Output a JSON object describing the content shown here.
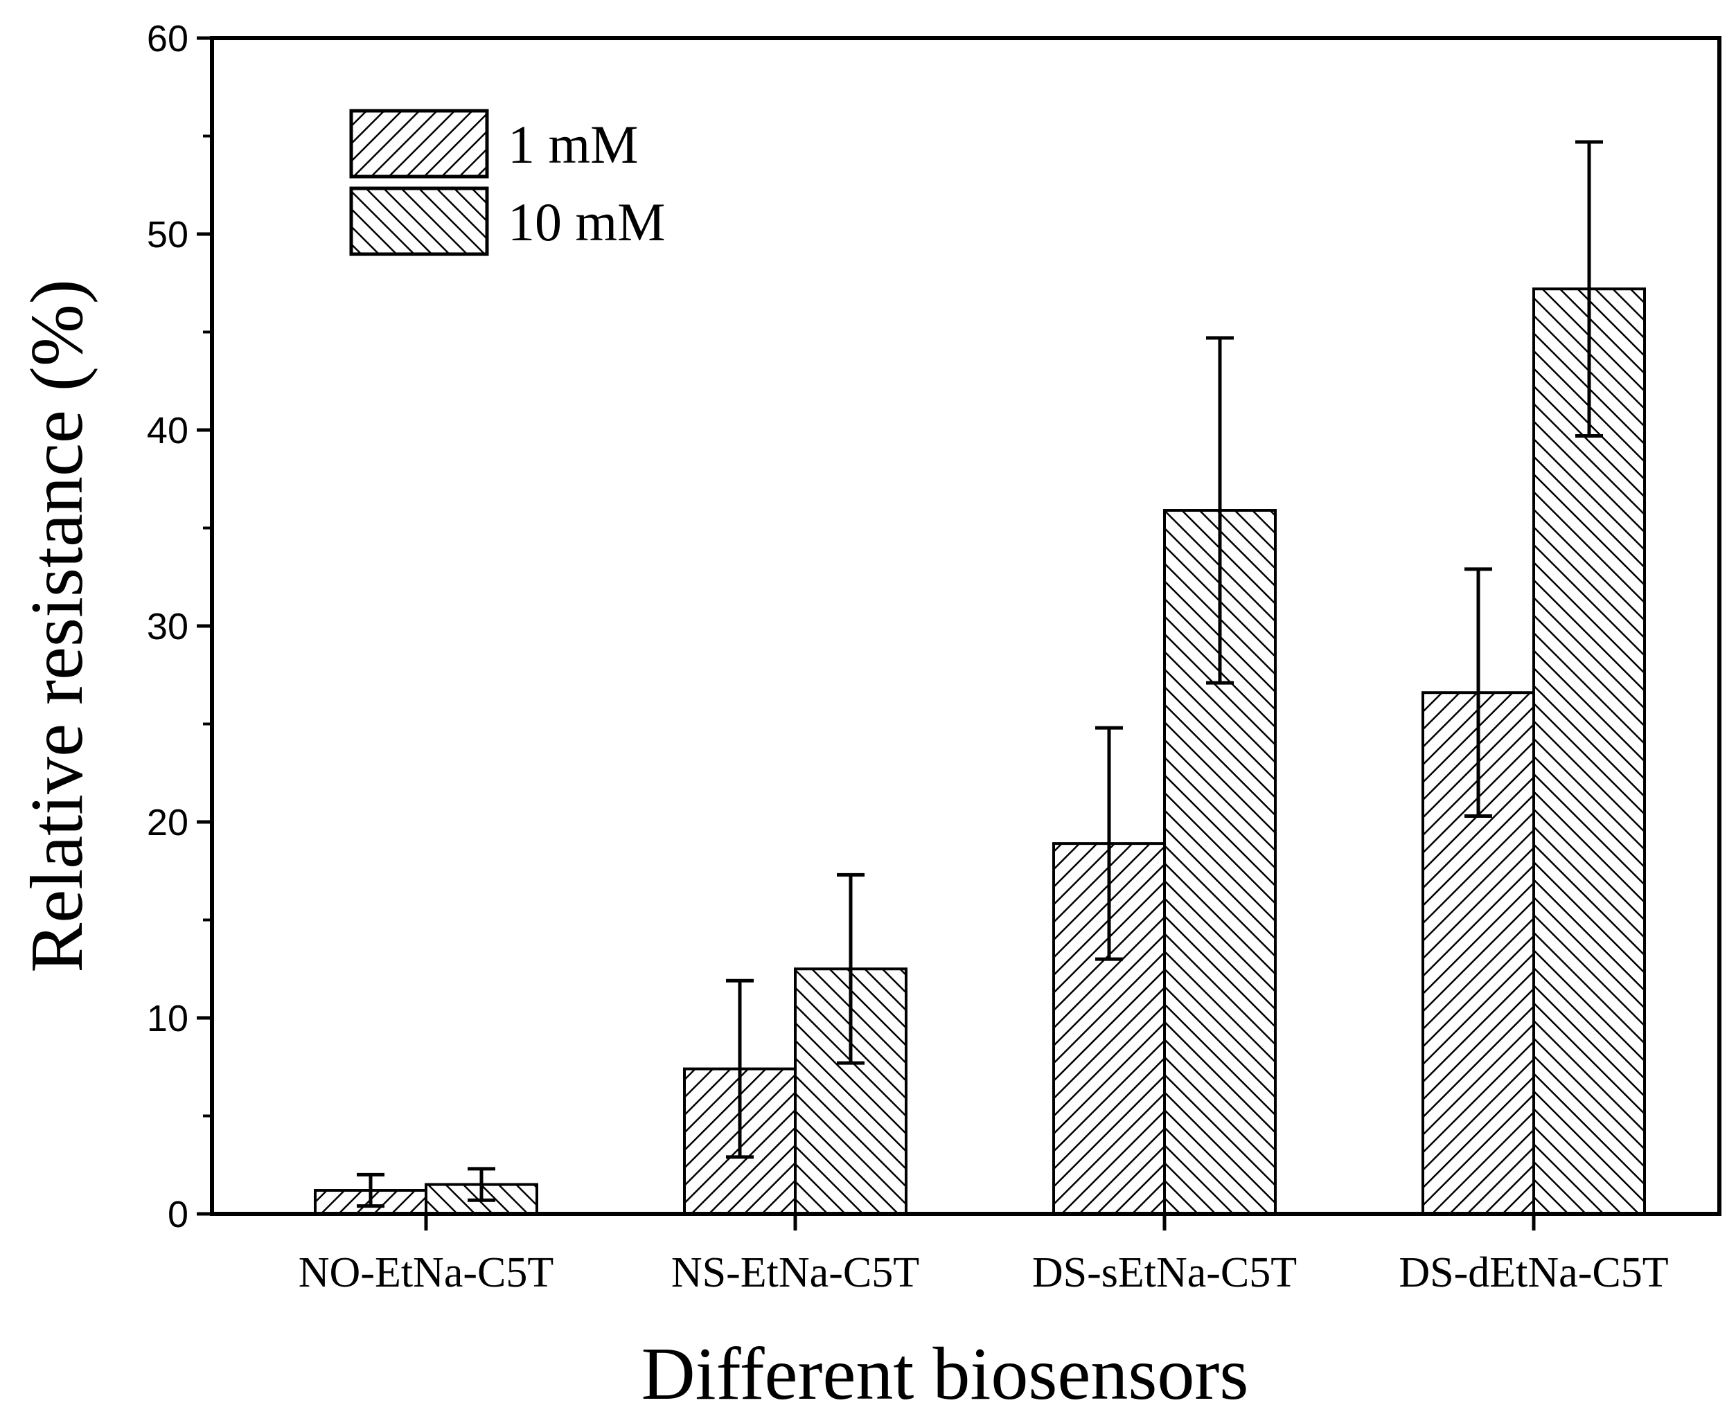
{
  "chart_data": {
    "type": "bar",
    "title": "",
    "xlabel": "Different biosensors",
    "ylabel": "Relative resistance (%)",
    "ylim": [
      0,
      60
    ],
    "yticks": [
      0,
      10,
      20,
      30,
      40,
      50,
      60
    ],
    "grid": false,
    "legend_position": "top-left",
    "categories": [
      "NO-EtNa-C5T",
      "NS-EtNa-C5T",
      "DS-sEtNa-C5T",
      "DS-dEtNa-C5T"
    ],
    "series": [
      {
        "name": "1 mM",
        "pattern": "hatch-forward",
        "values": [
          1.2,
          7.4,
          18.9,
          26.6
        ],
        "errors": [
          0.8,
          4.5,
          5.9,
          6.3
        ]
      },
      {
        "name": "10 mM",
        "pattern": "hatch-backward",
        "values": [
          1.5,
          12.5,
          35.9,
          47.2
        ],
        "errors": [
          0.8,
          4.8,
          8.8,
          7.5
        ]
      }
    ],
    "colors": {
      "bar_fill": "#ffffff",
      "stroke": "#000000",
      "hatch": "#000000"
    }
  }
}
